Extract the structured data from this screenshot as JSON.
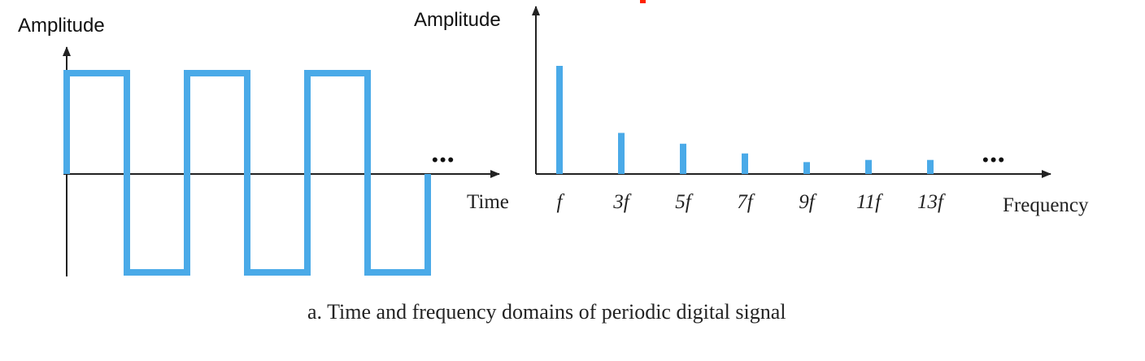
{
  "time_domain": {
    "y_axis_label": "Amplitude",
    "x_axis_label": "Time",
    "ellipsis": "•••",
    "waveform": "square",
    "levels": [
      1,
      -1
    ],
    "half_periods_shown": 6
  },
  "frequency_domain": {
    "y_axis_label": "Amplitude",
    "x_axis_label": "Frequency",
    "ellipsis": "•••",
    "harmonics": [
      {
        "label": "f",
        "relative_amplitude": 1.0
      },
      {
        "label": "3f",
        "relative_amplitude": 0.38
      },
      {
        "label": "5f",
        "relative_amplitude": 0.28
      },
      {
        "label": "7f",
        "relative_amplitude": 0.19
      },
      {
        "label": "9f",
        "relative_amplitude": 0.11
      },
      {
        "label": "11f",
        "relative_amplitude": 0.13
      },
      {
        "label": "13f",
        "relative_amplitude": 0.13
      }
    ]
  },
  "caption": "a. Time and frequency domains of periodic digital signal",
  "colors": {
    "signal": "#4aaae8",
    "axis": "#222222",
    "text": "#222222",
    "red_mark": "#ff2200"
  }
}
